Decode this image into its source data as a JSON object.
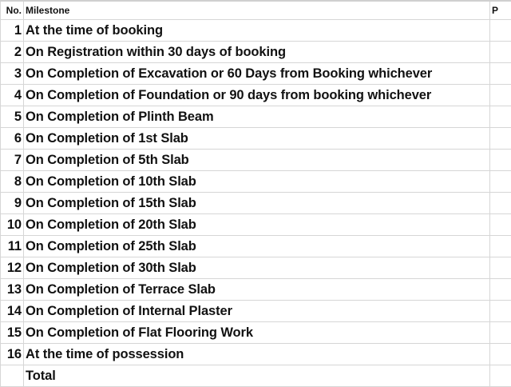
{
  "header": {
    "no": "No.",
    "milestone": "Milestone",
    "third": "P"
  },
  "rows": [
    {
      "no": "1",
      "milestone": "At the time of booking"
    },
    {
      "no": "2",
      "milestone": "On Registration within 30 days of booking"
    },
    {
      "no": "3",
      "milestone": "On Completion of Excavation or 60 Days from Booking whichever"
    },
    {
      "no": "4",
      "milestone": "On Completion of Foundation or 90 days from booking whichever"
    },
    {
      "no": "5",
      "milestone": "On Completion of Plinth Beam"
    },
    {
      "no": "6",
      "milestone": "On Completion of 1st Slab"
    },
    {
      "no": "7",
      "milestone": "On Completion of 5th Slab"
    },
    {
      "no": "8",
      "milestone": "On Completion of 10th Slab"
    },
    {
      "no": "9",
      "milestone": "On Completion of 15th Slab"
    },
    {
      "no": "10",
      "milestone": "On Completion of 20th Slab"
    },
    {
      "no": "11",
      "milestone": "On Completion of 25th Slab"
    },
    {
      "no": "12",
      "milestone": "On Completion of 30th Slab"
    },
    {
      "no": "13",
      "milestone": "On Completion of Terrace Slab"
    },
    {
      "no": "14",
      "milestone": "On Completion of Internal Plaster"
    },
    {
      "no": "15",
      "milestone": "On Completion of Flat Flooring Work"
    },
    {
      "no": "16",
      "milestone": "At the time of possession"
    },
    {
      "no": "",
      "milestone": "Total"
    }
  ]
}
